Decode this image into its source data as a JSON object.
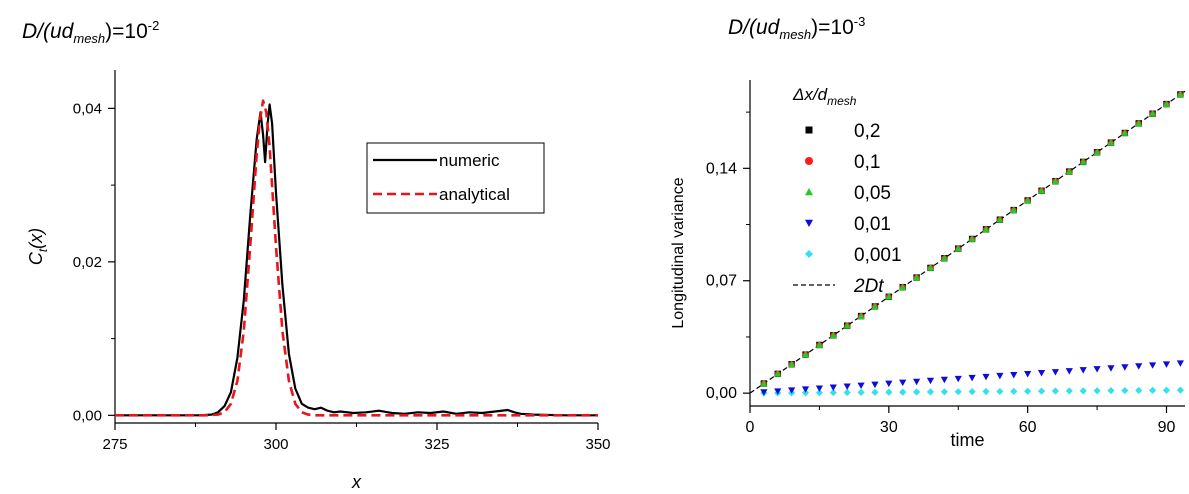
{
  "chart_data": [
    {
      "type": "line",
      "heading": {
        "base": "D/(ud",
        "sub": "mesh",
        "tail": ")=10",
        "exp": "-2"
      },
      "xlabel": "x",
      "ylabel": {
        "main": "C",
        "sub": "t",
        "tail": "(x)"
      },
      "xlim": [
        275,
        350
      ],
      "ylim": [
        -0.001,
        0.045
      ],
      "xticks": [
        275,
        300,
        325,
        350
      ],
      "yticks": [
        0.0,
        0.02,
        0.04
      ],
      "tick_labels_x": [
        "275",
        "300",
        "325",
        "350"
      ],
      "tick_labels_y": [
        "0,00",
        "0,02",
        "0,04"
      ],
      "legend_position": "top-right",
      "series": [
        {
          "name": "numeric",
          "color": "#000000",
          "style": "solid",
          "x": [
            275,
            288,
            290,
            291,
            292,
            293,
            294,
            295,
            296,
            297,
            297.6,
            298,
            298.3,
            298.7,
            299,
            299.4,
            300,
            301,
            302,
            303,
            304,
            305,
            306,
            307,
            308,
            309,
            310,
            312,
            314,
            316,
            318,
            320,
            322,
            324,
            326,
            328,
            330,
            332,
            334,
            336,
            337,
            338,
            340,
            345,
            350
          ],
          "y": [
            0,
            0,
            0.0001,
            0.0004,
            0.0012,
            0.003,
            0.0075,
            0.015,
            0.026,
            0.036,
            0.0395,
            0.0365,
            0.033,
            0.038,
            0.0405,
            0.038,
            0.029,
            0.017,
            0.008,
            0.0035,
            0.0015,
            0.001,
            0.0008,
            0.001,
            0.0006,
            0.0004,
            0.0005,
            0.0003,
            0.0004,
            0.0006,
            0.0003,
            0.0002,
            0.0004,
            0.0003,
            0.0005,
            0.0002,
            0.0004,
            0.0003,
            0.0005,
            0.0007,
            0.0004,
            0.0002,
            0.0001,
            0,
            0
          ]
        },
        {
          "name": "analytical",
          "color": "#e8161b",
          "style": "dashed",
          "x": [
            275,
            289,
            291,
            292,
            293,
            294,
            295,
            296,
            297,
            297.5,
            298,
            298.5,
            299,
            300,
            301,
            302,
            303,
            304,
            305,
            306,
            308,
            350
          ],
          "y": [
            0,
            0,
            0.0001,
            0.0004,
            0.0015,
            0.0045,
            0.011,
            0.022,
            0.034,
            0.0385,
            0.041,
            0.0395,
            0.035,
            0.022,
            0.011,
            0.0045,
            0.0015,
            0.0004,
            0.0001,
            0,
            0,
            0
          ]
        }
      ]
    },
    {
      "type": "scatter",
      "heading": {
        "base": "D/(ud",
        "sub": "mesh",
        "tail": ")=10",
        "exp": "-3"
      },
      "xlabel": "time",
      "ylabel": "Longitudinal variance",
      "xlim": [
        0,
        94
      ],
      "ylim": [
        -0.008,
        0.195
      ],
      "xticks": [
        0,
        30,
        60,
        90
      ],
      "yticks": [
        0.0,
        0.07,
        0.14
      ],
      "tick_labels_x": [
        "0",
        "30",
        "60",
        "90"
      ],
      "tick_labels_y": [
        "0,00",
        "0,07",
        "0,14"
      ],
      "legend_position": "top-left",
      "legend_title": {
        "base": "Δx/d",
        "sub": "mesh"
      },
      "point_x": [
        3,
        6,
        9,
        12,
        15,
        18,
        21,
        24,
        27,
        30,
        33,
        36,
        39,
        42,
        45,
        48,
        51,
        54,
        57,
        60,
        63,
        66,
        69,
        72,
        75,
        78,
        81,
        84,
        87,
        90,
        93
      ],
      "series": [
        {
          "name": "0,2",
          "marker": "square",
          "color": "#000000",
          "slope": 0.002
        },
        {
          "name": "0,1",
          "marker": "circle",
          "color": "#ff1a1a",
          "slope": 0.002
        },
        {
          "name": "0,05",
          "marker": "triangle-up",
          "color": "#22cc22",
          "slope": 0.002
        },
        {
          "name": "0,01",
          "marker": "triangle-down",
          "color": "#0d0dd9",
          "slope": 0.0002
        },
        {
          "name": "0,001",
          "marker": "diamond",
          "color": "#33e0ee",
          "slope": 2e-05
        }
      ],
      "reference": {
        "name": "2Dt",
        "color": "#000000",
        "style": "dashed",
        "slope": 0.002,
        "x": [
          0,
          94
        ]
      }
    }
  ]
}
